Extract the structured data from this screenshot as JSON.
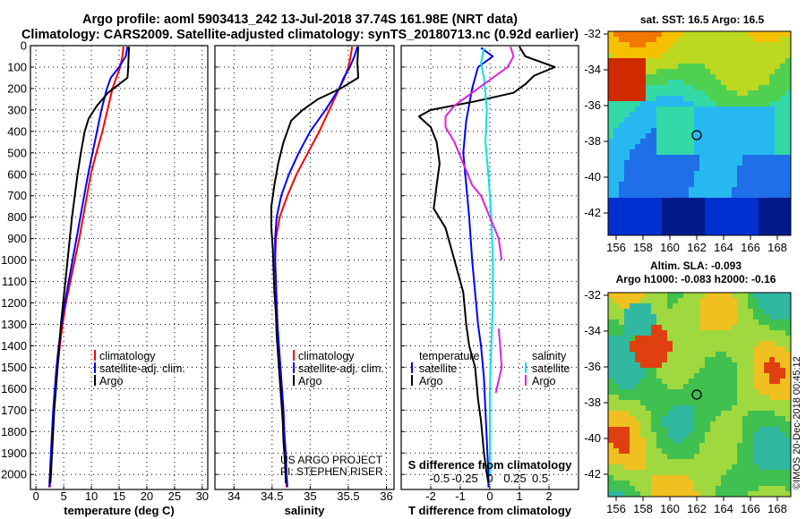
{
  "header": {
    "line1": "Argo profile: aoml 5903413_242 13-Jul-2018 37.74S 161.98E (NRT data)",
    "line2": "Climatology: CARS2009. Satellite-adjusted climatology: synTS_20180713.nc (0.92d earlier)"
  },
  "colors": {
    "climatology": "#ff0000",
    "satellite": "#0000ff",
    "argo": "#000000",
    "sat_temp_diff": "#0000ff",
    "sat_sal_diff": "#00e5e5",
    "argo_sal_diff": "#e020e0"
  },
  "chart_data": [
    {
      "id": "temperature",
      "type": "line",
      "xlabel": "temperature (deg C)",
      "xlim": [
        -1,
        31
      ],
      "ylim": [
        2070,
        0
      ],
      "xticks": [
        0,
        5,
        10,
        15,
        20,
        25,
        30
      ],
      "yticks": [
        0,
        100,
        200,
        300,
        400,
        500,
        600,
        700,
        800,
        900,
        1000,
        1100,
        1200,
        1300,
        1400,
        1500,
        1600,
        1700,
        1800,
        1900,
        2000
      ],
      "legend": [
        "climatology",
        "satellite-adj. clim.",
        "Argo"
      ],
      "series": [
        {
          "name": "climatology",
          "color": "#ff0000",
          "points": [
            [
              15.8,
              5
            ],
            [
              15.6,
              50
            ],
            [
              15.2,
              100
            ],
            [
              14.5,
              150
            ],
            [
              13.8,
              200
            ],
            [
              12.9,
              300
            ],
            [
              12.0,
              400
            ],
            [
              10.9,
              500
            ],
            [
              9.9,
              600
            ],
            [
              9.2,
              700
            ],
            [
              8.5,
              800
            ],
            [
              7.8,
              900
            ],
            [
              7.0,
              1000
            ],
            [
              6.2,
              1100
            ],
            [
              5.4,
              1200
            ],
            [
              4.8,
              1300
            ],
            [
              4.3,
              1400
            ],
            [
              3.9,
              1500
            ],
            [
              3.5,
              1600
            ],
            [
              3.2,
              1700
            ],
            [
              3.0,
              1800
            ],
            [
              2.8,
              1900
            ],
            [
              2.6,
              2000
            ],
            [
              2.5,
              2060
            ]
          ]
        },
        {
          "name": "satellite-adj. clim.",
          "color": "#0000ff",
          "points": [
            [
              16.5,
              5
            ],
            [
              16.2,
              50
            ],
            [
              15.0,
              100
            ],
            [
              13.5,
              150
            ],
            [
              12.8,
              200
            ],
            [
              11.8,
              300
            ],
            [
              11.0,
              400
            ],
            [
              10.2,
              500
            ],
            [
              9.4,
              600
            ],
            [
              8.7,
              700
            ],
            [
              8.0,
              800
            ],
            [
              7.3,
              900
            ],
            [
              6.6,
              1000
            ],
            [
              5.9,
              1100
            ],
            [
              5.2,
              1200
            ],
            [
              4.6,
              1300
            ],
            [
              4.1,
              1400
            ],
            [
              3.7,
              1500
            ],
            [
              3.4,
              1600
            ],
            [
              3.1,
              1700
            ],
            [
              2.9,
              1800
            ],
            [
              2.7,
              1900
            ],
            [
              2.5,
              2000
            ],
            [
              2.4,
              2060
            ]
          ]
        },
        {
          "name": "Argo",
          "color": "#000000",
          "points": [
            [
              16.8,
              5
            ],
            [
              16.7,
              60
            ],
            [
              16.6,
              120
            ],
            [
              16.5,
              150
            ],
            [
              13.0,
              220
            ],
            [
              11.0,
              280
            ],
            [
              9.5,
              340
            ],
            [
              8.8,
              400
            ],
            [
              8.1,
              500
            ],
            [
              7.5,
              600
            ],
            [
              7.0,
              700
            ],
            [
              6.5,
              800
            ],
            [
              6.1,
              900
            ],
            [
              5.7,
              1000
            ],
            [
              5.3,
              1100
            ],
            [
              4.9,
              1200
            ],
            [
              4.5,
              1300
            ],
            [
              4.2,
              1400
            ],
            [
              3.9,
              1500
            ],
            [
              3.6,
              1600
            ],
            [
              3.3,
              1700
            ],
            [
              3.1,
              1800
            ],
            [
              2.9,
              1900
            ],
            [
              2.7,
              2000
            ],
            [
              2.6,
              2040
            ]
          ]
        }
      ]
    },
    {
      "id": "salinity",
      "type": "line",
      "xlabel": "salinity",
      "xlim": [
        33.75,
        36.1
      ],
      "ylim": [
        2070,
        0
      ],
      "xticks": [
        34,
        34.5,
        35,
        35.5,
        36
      ],
      "xticklabels": [
        "34",
        "34.5",
        "35",
        "35.5",
        "36"
      ],
      "legend": [
        "climatology",
        "satellite-adj. clim.",
        "Argo"
      ],
      "notes": [
        "US ARGO PROJECT",
        "PI: STEPHEN RISER"
      ],
      "series": [
        {
          "name": "climatology",
          "color": "#ff0000",
          "points": [
            [
              35.55,
              5
            ],
            [
              35.53,
              50
            ],
            [
              35.5,
              100
            ],
            [
              35.45,
              150
            ],
            [
              35.38,
              200
            ],
            [
              35.25,
              300
            ],
            [
              35.12,
              400
            ],
            [
              34.97,
              500
            ],
            [
              34.82,
              600
            ],
            [
              34.7,
              700
            ],
            [
              34.6,
              800
            ],
            [
              34.55,
              900
            ],
            [
              34.54,
              1000
            ],
            [
              34.55,
              1100
            ],
            [
              34.56,
              1200
            ],
            [
              34.57,
              1300
            ],
            [
              34.58,
              1400
            ],
            [
              34.6,
              1500
            ],
            [
              34.62,
              1600
            ],
            [
              34.64,
              1700
            ],
            [
              34.65,
              1800
            ],
            [
              34.67,
              1900
            ],
            [
              34.68,
              2000
            ],
            [
              34.69,
              2060
            ]
          ]
        },
        {
          "name": "satellite-adj. clim.",
          "color": "#0000ff",
          "points": [
            [
              35.62,
              5
            ],
            [
              35.58,
              50
            ],
            [
              35.52,
              100
            ],
            [
              35.44,
              150
            ],
            [
              35.38,
              200
            ],
            [
              35.2,
              300
            ],
            [
              35.0,
              400
            ],
            [
              34.85,
              500
            ],
            [
              34.72,
              600
            ],
            [
              34.62,
              700
            ],
            [
              34.56,
              800
            ],
            [
              34.54,
              900
            ],
            [
              34.54,
              1000
            ],
            [
              34.55,
              1100
            ],
            [
              34.56,
              1200
            ],
            [
              34.57,
              1300
            ],
            [
              34.59,
              1400
            ],
            [
              34.61,
              1500
            ],
            [
              34.63,
              1600
            ],
            [
              34.65,
              1700
            ],
            [
              34.66,
              1800
            ],
            [
              34.68,
              1900
            ],
            [
              34.69,
              2000
            ],
            [
              34.7,
              2060
            ]
          ]
        },
        {
          "name": "Argo",
          "color": "#000000",
          "points": [
            [
              35.63,
              5
            ],
            [
              35.62,
              80
            ],
            [
              35.63,
              150
            ],
            [
              35.4,
              200
            ],
            [
              35.1,
              250
            ],
            [
              34.9,
              300
            ],
            [
              34.75,
              350
            ],
            [
              34.65,
              450
            ],
            [
              34.58,
              550
            ],
            [
              34.53,
              650
            ],
            [
              34.49,
              750
            ],
            [
              34.49,
              850
            ],
            [
              34.51,
              950
            ],
            [
              34.52,
              1050
            ],
            [
              34.53,
              1150
            ],
            [
              34.55,
              1250
            ],
            [
              34.56,
              1350
            ],
            [
              34.58,
              1450
            ],
            [
              34.6,
              1550
            ],
            [
              34.62,
              1650
            ],
            [
              34.64,
              1750
            ],
            [
              34.65,
              1850
            ],
            [
              34.67,
              1950
            ],
            [
              34.68,
              2040
            ]
          ]
        }
      ]
    },
    {
      "id": "differences",
      "type": "line",
      "xlabel": "T difference from climatology",
      "toplabel": "S difference from climatology",
      "xlim": [
        -3,
        3
      ],
      "ylim": [
        2070,
        0
      ],
      "xticks": [
        -2,
        -1,
        0,
        1,
        2
      ],
      "top_xticks": [
        -0.5,
        -0.25,
        0,
        0.25,
        0.5
      ],
      "top_xticklabels": [
        "-0.5",
        "-0.25",
        "0",
        "0.25",
        "0.5"
      ],
      "legend_left_title": "temperature",
      "legend_right_title": "salinity",
      "legend_left": [
        "satellite",
        "Argo"
      ],
      "legend_right": [
        "satellite",
        "Argo"
      ],
      "series": [
        {
          "name": "T satellite",
          "color": "#0000ff",
          "points": [
            [
              -0.3,
              10
            ],
            [
              0.1,
              50
            ],
            [
              -0.4,
              100
            ],
            [
              -0.6,
              200
            ],
            [
              -0.8,
              350
            ],
            [
              -0.9,
              500
            ],
            [
              -0.8,
              650
            ],
            [
              -0.7,
              800
            ],
            [
              -0.6,
              1000
            ],
            [
              -0.5,
              1150
            ],
            [
              -0.4,
              1300
            ],
            [
              -0.3,
              1400
            ],
            [
              -0.2,
              1550
            ],
            [
              -0.15,
              1700
            ],
            [
              -0.1,
              1850
            ],
            [
              -0.05,
              2000
            ],
            [
              -0.05,
              2060
            ]
          ]
        },
        {
          "name": "T Argo",
          "color": "#000000",
          "points": [
            [
              1.0,
              5
            ],
            [
              1.2,
              50
            ],
            [
              1.8,
              80
            ],
            [
              2.2,
              100
            ],
            [
              1.5,
              140
            ],
            [
              1.2,
              180
            ],
            [
              0.8,
              220
            ],
            [
              -0.5,
              260
            ],
            [
              -2.0,
              300
            ],
            [
              -2.4,
              330
            ],
            [
              -2.0,
              380
            ],
            [
              -1.8,
              450
            ],
            [
              -1.7,
              550
            ],
            [
              -1.8,
              650
            ],
            [
              -1.9,
              760
            ],
            [
              -1.5,
              850
            ],
            [
              -1.3,
              950
            ],
            [
              -1.1,
              1050
            ],
            [
              -0.9,
              1150
            ],
            [
              -0.8,
              1300
            ],
            [
              -0.7,
              1400
            ],
            [
              -0.5,
              1500
            ],
            [
              -0.4,
              1650
            ],
            [
              -0.3,
              1750
            ],
            [
              -0.2,
              1900
            ],
            [
              -0.1,
              2000
            ],
            [
              -0.05,
              2040
            ]
          ]
        },
        {
          "name": "S satellite",
          "color": "#00e5e5",
          "points": [
            [
              -0.2,
              10
            ],
            [
              -0.3,
              80
            ],
            [
              -0.2,
              150
            ],
            [
              -0.1,
              300
            ],
            [
              -0.15,
              450
            ],
            [
              -0.05,
              600
            ],
            [
              0.05,
              800
            ],
            [
              0.1,
              1000
            ],
            [
              0.1,
              1200
            ],
            [
              0.05,
              1400
            ],
            [
              0.0,
              1600
            ],
            [
              0.0,
              1800
            ],
            [
              0.0,
              2000
            ]
          ]
        },
        {
          "name": "S Argo",
          "color": "#e020e0",
          "points": [
            [
              0.7,
              5
            ],
            [
              0.8,
              50
            ],
            [
              0.6,
              100
            ],
            [
              -0.2,
              180
            ],
            [
              -1.2,
              280
            ],
            [
              -1.5,
              330
            ],
            [
              -1.5,
              380
            ],
            [
              -1.2,
              450
            ],
            [
              -0.6,
              650
            ],
            [
              -0.3,
              700
            ],
            [
              0.0,
              800
            ],
            [
              0.3,
              900
            ],
            [
              0.4,
              1000
            ]
          ],
          "points2": [
            [
              0.3,
              1320
            ],
            [
              0.35,
              1400
            ],
            [
              0.4,
              1500
            ],
            [
              0.3,
              1560
            ],
            [
              0.2,
              1620
            ]
          ]
        }
      ]
    }
  ],
  "maps": {
    "sst": {
      "title": "sat. SST: 16.5 Argo: 16.5",
      "lat_ticks": [
        "-32",
        "-34",
        "-36",
        "-38",
        "-40",
        "-42"
      ],
      "lon_ticks": [
        "156",
        "158",
        "160",
        "162",
        "164",
        "166",
        "168"
      ]
    },
    "sla": {
      "title1": "Altim. SLA: -0.093",
      "title2": "Argo h1000: -0.083 h2000: -0.16",
      "lat_ticks": [
        "-32",
        "-34",
        "-36",
        "-38",
        "-40",
        "-42"
      ],
      "lon_ticks": [
        "156",
        "158",
        "160",
        "162",
        "164",
        "166",
        "168"
      ]
    },
    "float_position": {
      "lon": 161.98,
      "lat": -37.74
    }
  },
  "credit": "©IMOS 20-Dec-2018 00:45:12"
}
